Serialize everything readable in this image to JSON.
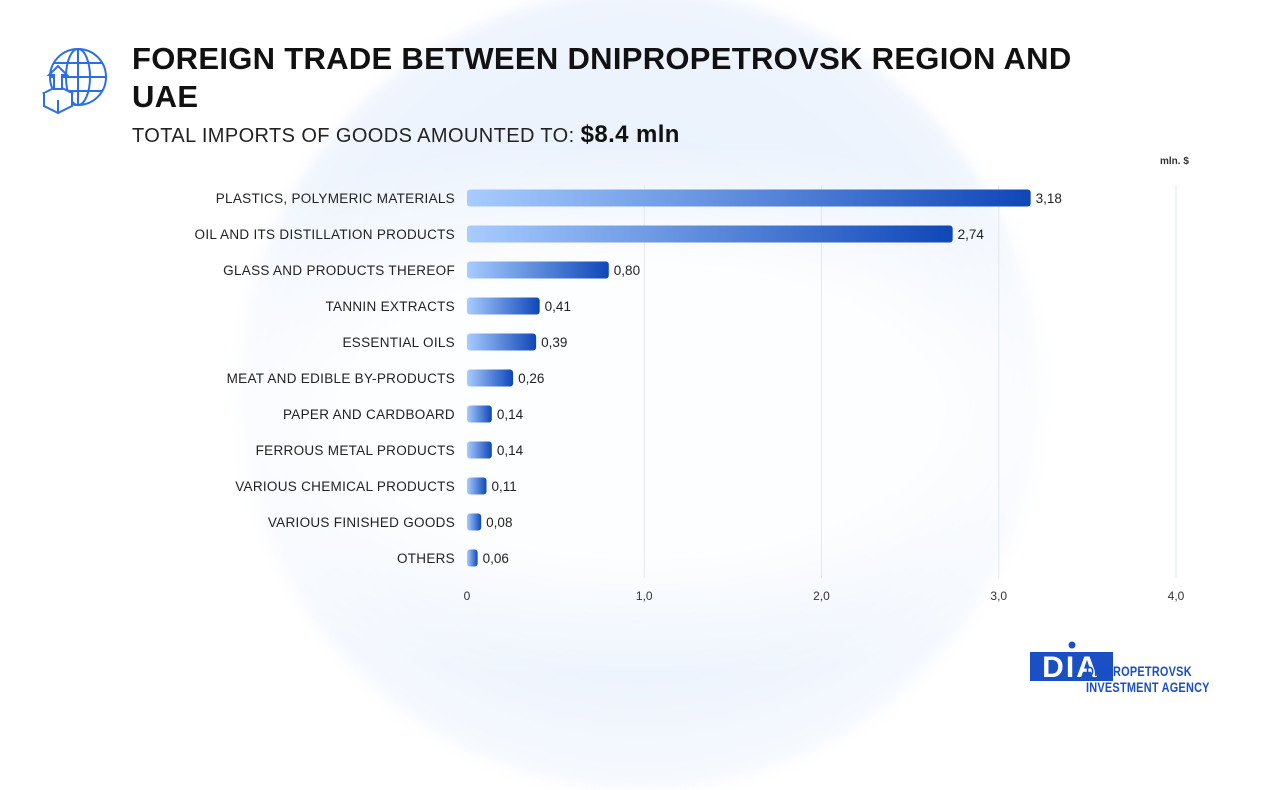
{
  "header": {
    "title": "FOREIGN TRADE BETWEEN DNIPROPETROVSK REGION AND UAE",
    "subtitle_label": "TOTAL IMPORTS OF GOODS AMOUNTED TO:",
    "subtitle_value": "$8.4  mln"
  },
  "logo": {
    "text": "DIA",
    "line1": "DNIPROPETROVSK",
    "line2": "INVESTMENT AGENCY"
  },
  "colors": {
    "bar_start": "#a8ccff",
    "bar_end": "#0f47b8",
    "grid": "#e3e8ef"
  },
  "chart_data": {
    "type": "bar",
    "orientation": "horizontal",
    "unit_label": "mln. $",
    "categories": [
      "PLASTICS, POLYMERIC MATERIALS",
      "OIL AND ITS DISTILLATION PRODUCTS",
      "GLASS AND PRODUCTS THEREOF",
      "TANNIN EXTRACTS",
      "ESSENTIAL OILS",
      "MEAT AND EDIBLE BY-PRODUCTS",
      "PAPER AND CARDBOARD",
      "FERROUS METAL PRODUCTS",
      "VARIOUS CHEMICAL PRODUCTS",
      "VARIOUS FINISHED GOODS",
      "OTHERS"
    ],
    "values": [
      3.18,
      2.74,
      0.8,
      0.41,
      0.39,
      0.26,
      0.14,
      0.14,
      0.11,
      0.08,
      0.06
    ],
    "value_labels": [
      "3,18",
      "2,74",
      "0,80",
      "0,41",
      "0,39",
      "0,26",
      "0,14",
      "0,14",
      "0,11",
      "0,08",
      "0,06"
    ],
    "xlim": [
      0,
      4
    ],
    "ticks": [
      0,
      1,
      2,
      3,
      4
    ],
    "tick_labels": [
      "0",
      "1,0",
      "2,0",
      "3,0",
      "4,0"
    ],
    "grid": true
  }
}
